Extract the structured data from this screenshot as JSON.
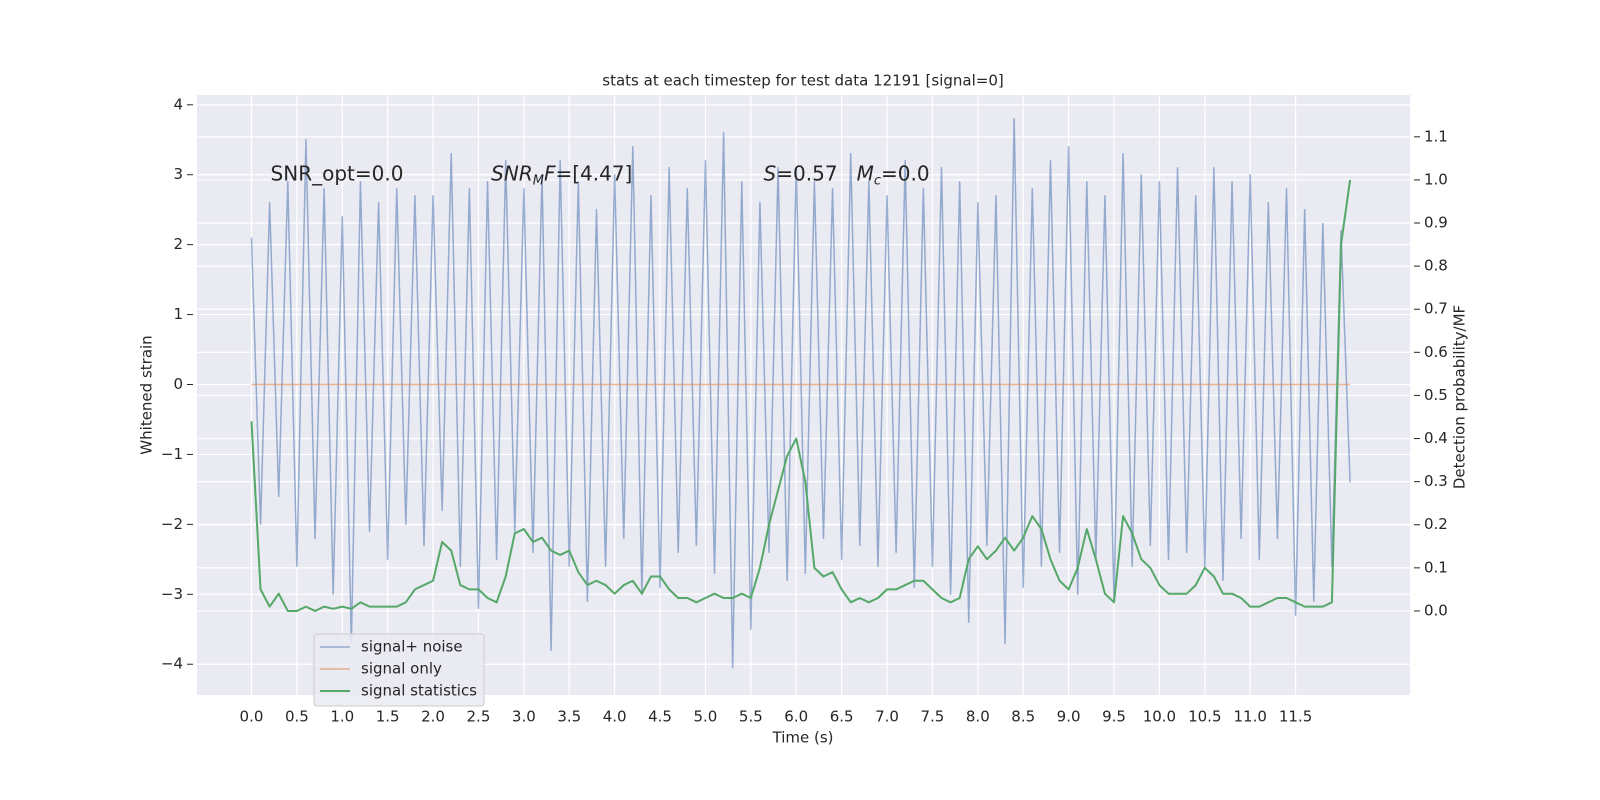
{
  "chart_data": {
    "type": "line",
    "title": "stats at each timestep for test data 12191 [signal=0]",
    "xlabel": "Time (s)",
    "ylabel": "Whitened strain",
    "y2label": "Detection probability/MF",
    "x": [
      0.0,
      0.1,
      0.2,
      0.3,
      0.4,
      0.5,
      0.6,
      0.7,
      0.8,
      0.9,
      1.0,
      1.1,
      1.2,
      1.3,
      1.4,
      1.5,
      1.6,
      1.7,
      1.8,
      1.9,
      2.0,
      2.1,
      2.2,
      2.3,
      2.4,
      2.5,
      2.6,
      2.7,
      2.8,
      2.9,
      3.0,
      3.1,
      3.2,
      3.3,
      3.4,
      3.5,
      3.6,
      3.7,
      3.8,
      3.9,
      4.0,
      4.1,
      4.2,
      4.3,
      4.4,
      4.5,
      4.6,
      4.7,
      4.8,
      4.9,
      5.0,
      5.1,
      5.2,
      5.3,
      5.4,
      5.5,
      5.6,
      5.7,
      5.8,
      5.9,
      6.0,
      6.1,
      6.2,
      6.3,
      6.4,
      6.5,
      6.6,
      6.7,
      6.8,
      6.9,
      7.0,
      7.1,
      7.2,
      7.3,
      7.4,
      7.5,
      7.6,
      7.7,
      7.8,
      7.9,
      8.0,
      8.1,
      8.2,
      8.3,
      8.4,
      8.5,
      8.6,
      8.7,
      8.8,
      8.9,
      9.0,
      9.1,
      9.2,
      9.3,
      9.4,
      9.5,
      9.6,
      9.7,
      9.8,
      9.9,
      10.0,
      10.1,
      10.2,
      10.3,
      10.4,
      10.5,
      10.6,
      10.7,
      10.8,
      10.9,
      11.0,
      11.1,
      11.2,
      11.3,
      11.4,
      11.5,
      11.6,
      11.7,
      11.8,
      11.9,
      12.0,
      12.1
    ],
    "series": [
      {
        "name": "signal+ noise",
        "color": "#4c72b0",
        "alpha": 0.55,
        "width": 1.5,
        "values": [
          2.1,
          -2.0,
          2.6,
          -1.6,
          2.9,
          -2.6,
          3.5,
          -2.2,
          2.8,
          -3.0,
          2.4,
          -3.7,
          2.9,
          -2.1,
          2.6,
          -2.5,
          2.8,
          -2.0,
          2.7,
          -2.3,
          2.7,
          -1.8,
          3.3,
          -2.6,
          2.8,
          -3.2,
          2.9,
          -2.5,
          3.2,
          -2.1,
          2.8,
          -2.4,
          3.0,
          -3.8,
          3.2,
          -2.6,
          2.9,
          -3.1,
          2.5,
          -2.6,
          3.0,
          -2.2,
          3.4,
          -3.0,
          2.7,
          -2.9,
          3.1,
          -2.4,
          2.8,
          -2.3,
          3.2,
          -2.7,
          3.6,
          -4.05,
          2.9,
          -3.5,
          2.6,
          -2.4,
          3.1,
          -2.8,
          3.1,
          -2.7,
          2.9,
          -2.2,
          2.8,
          -2.5,
          3.3,
          -2.3,
          2.9,
          -2.6,
          2.7,
          -2.4,
          3.2,
          -2.9,
          2.8,
          -2.6,
          3.1,
          -3.0,
          2.9,
          -3.4,
          2.6,
          -2.3,
          2.7,
          -3.7,
          3.8,
          -2.9,
          2.8,
          -2.6,
          3.2,
          -2.4,
          3.4,
          -3.0,
          2.9,
          -2.5,
          2.7,
          -3.1,
          3.3,
          -2.6,
          3.0,
          -2.3,
          2.9,
          -2.5,
          3.1,
          -2.4,
          2.7,
          -2.6,
          3.1,
          -2.8,
          2.9,
          -2.2,
          3.0,
          -2.5,
          2.6,
          -2.2,
          2.8,
          -3.3,
          2.5,
          -3.1,
          2.3,
          -2.6,
          2.2,
          -1.4
        ]
      },
      {
        "name": "signal only",
        "color": "#dd8452",
        "alpha": 0.6,
        "width": 1.5,
        "values": [
          0,
          0,
          0,
          0,
          0,
          0,
          0,
          0,
          0,
          0,
          0,
          0,
          0,
          0,
          0,
          0,
          0,
          0,
          0,
          0,
          0,
          0,
          0,
          0,
          0,
          0,
          0,
          0,
          0,
          0,
          0,
          0,
          0,
          0,
          0,
          0,
          0,
          0,
          0,
          0,
          0,
          0,
          0,
          0,
          0,
          0,
          0,
          0,
          0,
          0,
          0,
          0,
          0,
          0,
          0,
          0,
          0,
          0,
          0,
          0,
          0,
          0,
          0,
          0,
          0,
          0,
          0,
          0,
          0,
          0,
          0,
          0,
          0,
          0,
          0,
          0,
          0,
          0,
          0,
          0,
          0,
          0,
          0,
          0,
          0,
          0,
          0,
          0,
          0,
          0,
          0,
          0,
          0,
          0,
          0,
          0,
          0,
          0,
          0,
          0,
          0,
          0,
          0,
          0,
          0,
          0,
          0,
          0,
          0,
          0,
          0,
          0,
          0,
          0,
          0,
          0,
          0,
          0,
          0,
          0,
          0,
          0
        ]
      },
      {
        "name": "signal statistics",
        "color": "#55a868",
        "alpha": 1,
        "width": 2,
        "axis": "y2",
        "values": [
          0.44,
          0.05,
          0.01,
          0.04,
          0.0,
          0.0,
          0.01,
          0.0,
          0.01,
          0.005,
          0.01,
          0.005,
          0.02,
          0.01,
          0.01,
          0.01,
          0.01,
          0.02,
          0.05,
          0.06,
          0.07,
          0.16,
          0.14,
          0.06,
          0.05,
          0.05,
          0.03,
          0.02,
          0.08,
          0.18,
          0.19,
          0.16,
          0.17,
          0.14,
          0.13,
          0.14,
          0.09,
          0.06,
          0.07,
          0.06,
          0.04,
          0.06,
          0.07,
          0.04,
          0.08,
          0.08,
          0.05,
          0.03,
          0.03,
          0.02,
          0.03,
          0.04,
          0.03,
          0.03,
          0.04,
          0.03,
          0.1,
          0.2,
          0.28,
          0.36,
          0.4,
          0.3,
          0.1,
          0.08,
          0.09,
          0.05,
          0.02,
          0.03,
          0.02,
          0.03,
          0.05,
          0.05,
          0.06,
          0.07,
          0.07,
          0.05,
          0.03,
          0.02,
          0.03,
          0.12,
          0.15,
          0.12,
          0.14,
          0.17,
          0.14,
          0.17,
          0.22,
          0.19,
          0.12,
          0.07,
          0.05,
          0.1,
          0.19,
          0.12,
          0.04,
          0.02,
          0.22,
          0.18,
          0.12,
          0.1,
          0.06,
          0.04,
          0.04,
          0.04,
          0.06,
          0.1,
          0.08,
          0.04,
          0.04,
          0.03,
          0.01,
          0.01,
          0.02,
          0.03,
          0.03,
          0.02,
          0.01,
          0.01,
          0.01,
          0.02,
          0.85,
          1.0
        ]
      }
    ],
    "xlim": [
      -0.6,
      12.76
    ],
    "ylim": [
      -4.44,
      4.14
    ],
    "y2lim": [
      -0.195,
      1.197
    ],
    "xticks": [
      {
        "value": 0,
        "label": "0.0"
      },
      0.5,
      {
        "value": 1,
        "label": "1.0"
      },
      1.5,
      {
        "value": 2,
        "label": "2.0"
      },
      2.5,
      {
        "value": 3,
        "label": "3.0"
      },
      3.5,
      {
        "value": 4,
        "label": "4.0"
      },
      4.5,
      {
        "value": 5,
        "label": "5.0"
      },
      5.5,
      {
        "value": 6,
        "label": "6.0"
      },
      6.5,
      {
        "value": 7,
        "label": "7.0"
      },
      7.5,
      {
        "value": 8,
        "label": "8.0"
      },
      8.5,
      {
        "value": 9,
        "label": "9.0"
      },
      9.5,
      {
        "value": 10,
        "label": "10.0"
      },
      10.5,
      {
        "value": 11,
        "label": "11.0"
      },
      11.5
    ],
    "yticks": [
      {
        "value": -4,
        "label": "−4"
      },
      {
        "value": -3,
        "label": "−3"
      },
      {
        "value": -2,
        "label": "−2"
      },
      {
        "value": -1,
        "label": "−1"
      },
      0,
      1,
      2,
      3,
      4
    ],
    "y2ticks": [
      {
        "value": 0,
        "label": "0.0"
      },
      0.1,
      0.2,
      0.3,
      0.4,
      0.5,
      0.6,
      0.7,
      0.8,
      0.9,
      {
        "value": 1,
        "label": "1.0"
      },
      1.1
    ],
    "grid": true,
    "legend": "lower left",
    "annotations": [
      {
        "parts": [
          {
            "text": "SNR_opt=0.0",
            "style": "normal"
          }
        ]
      },
      {
        "parts": [
          {
            "text": "SNR",
            "style": "italic"
          },
          {
            "text": "M",
            "style": "sub"
          },
          {
            "text": "F",
            "style": "italic"
          },
          {
            "text": "=[4.47]",
            "style": "normal"
          }
        ]
      },
      {
        "parts": [
          {
            "text": "S",
            "style": "italic"
          },
          {
            "text": "=0.57   ",
            "style": "normal"
          },
          {
            "text": "M",
            "style": "italic"
          },
          {
            "text": "c",
            "style": "sub"
          },
          {
            "text": "=0.0",
            "style": "normal"
          }
        ]
      }
    ]
  }
}
